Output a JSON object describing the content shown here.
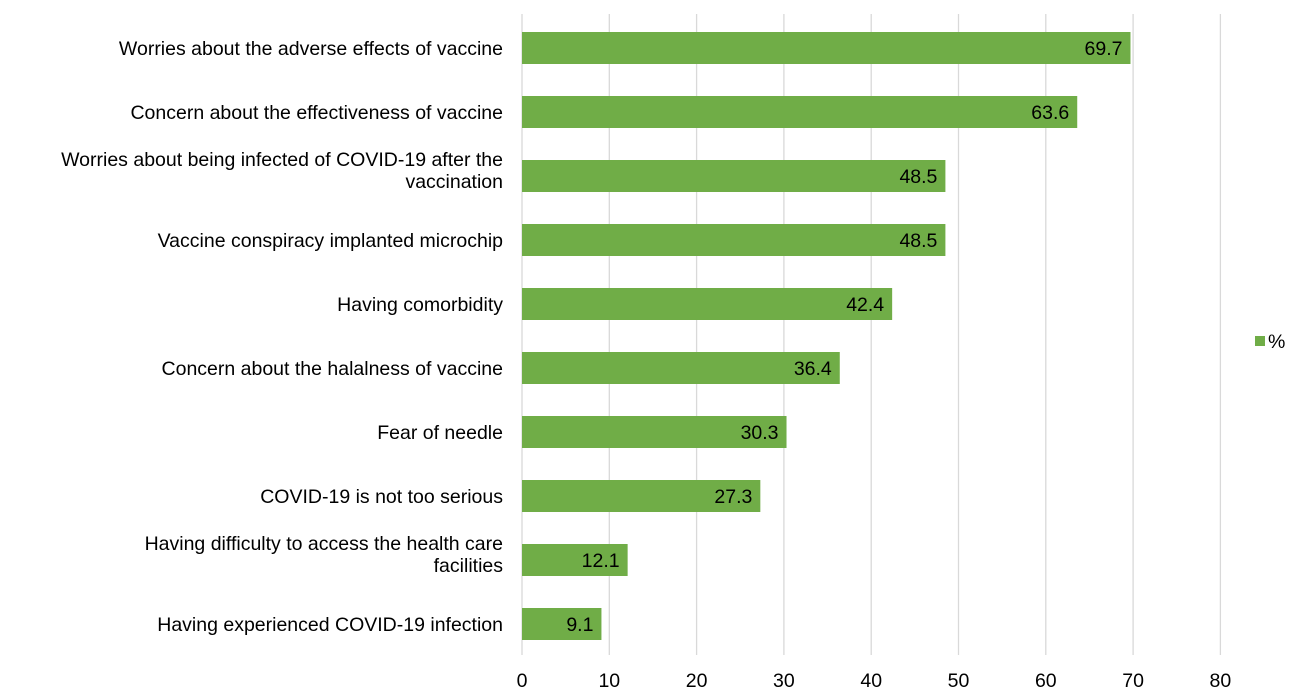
{
  "chart_data": {
    "type": "bar",
    "orientation": "horizontal",
    "categories": [
      "Worries about the adverse effects of vaccine",
      "Concern about the effectiveness of vaccine",
      "Worries about being infected of COVID-19 after the vaccination",
      "Vaccine conspiracy implanted microchip",
      "Having comorbidity",
      "Concern about the halalness of vaccine",
      "Fear of needle",
      "COVID-19 is not too serious",
      "Having difficulty to access the health care facilities",
      "Having experienced COVID-19 infection"
    ],
    "series": [
      {
        "name": "%",
        "values": [
          69.7,
          63.6,
          48.5,
          48.5,
          42.4,
          36.4,
          30.3,
          27.3,
          12.1,
          9.1
        ],
        "color": "#70ad47"
      }
    ],
    "data_labels": [
      "69.7",
      "63.6",
      "48.5",
      "48.5",
      "42.4",
      "36.4",
      "30.3",
      "27.3",
      "12.1",
      "9.1"
    ],
    "x_ticks": [
      "0",
      "10",
      "20",
      "30",
      "40",
      "50",
      "60",
      "70",
      "80"
    ],
    "xlim": [
      0,
      80
    ],
    "grid": "vertical",
    "legend": "right",
    "gridline_color": "#d9d9d9",
    "title": "",
    "xlabel": "",
    "ylabel": ""
  }
}
